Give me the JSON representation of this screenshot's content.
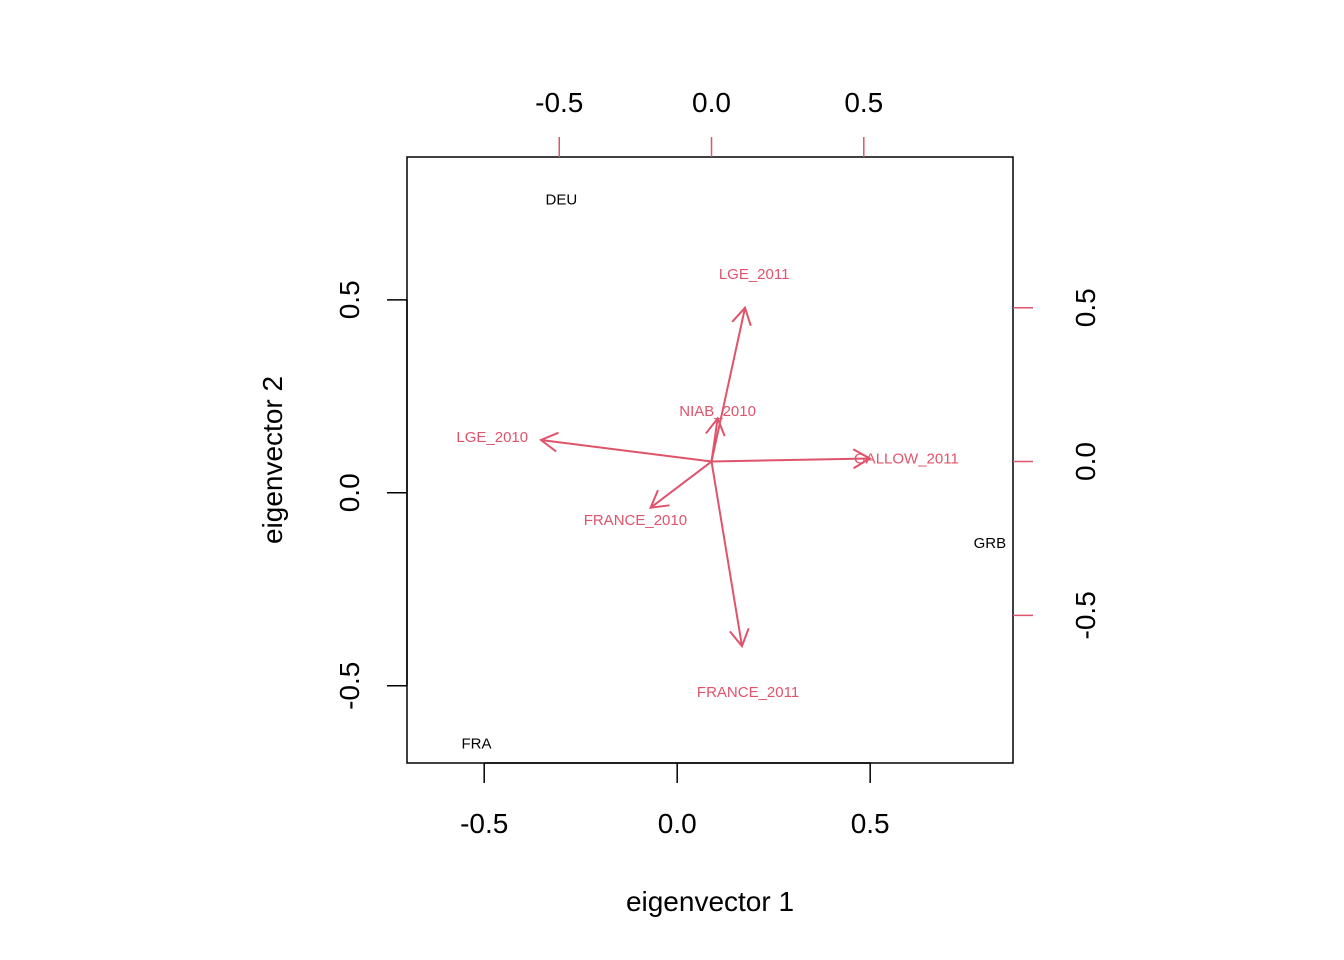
{
  "chart_data": {
    "type": "biplot",
    "xlabel": "eigenvector 1",
    "ylabel": "eigenvector 2",
    "colors": {
      "points": "#000000",
      "variables": "#DF536B"
    },
    "primary_axes": {
      "xlim": [
        -0.7,
        0.87
      ],
      "ylim": [
        -0.7,
        0.87
      ],
      "x_ticks": [
        -0.5,
        0.0,
        0.5
      ],
      "y_ticks": [
        -0.5,
        0.0,
        0.5
      ],
      "x_tick_labels": [
        "-0.5",
        "0.0",
        "0.5"
      ],
      "y_tick_labels": [
        "-0.5",
        "0.0",
        "0.5"
      ]
    },
    "secondary_axes": {
      "xlim": [
        -1.0,
        0.99
      ],
      "ylim": [
        -0.98,
        0.99
      ],
      "x_ticks": [
        -0.5,
        0.0,
        0.5
      ],
      "y_ticks": [
        -0.5,
        0.0,
        0.5
      ],
      "x_tick_labels": [
        "-0.5",
        "0.0",
        "0.5"
      ],
      "y_tick_labels": [
        "-0.5",
        "0.0",
        "0.5"
      ]
    },
    "points": [
      {
        "label": "DEU",
        "x": -0.3,
        "y": 0.76
      },
      {
        "label": "FRA",
        "x": -0.52,
        "y": -0.65
      },
      {
        "label": "GRB",
        "x": 0.81,
        "y": -0.13
      }
    ],
    "variables": [
      {
        "label": "LGE_2011",
        "x": 0.11,
        "y": 0.5,
        "label_x": 0.14,
        "label_y": 0.61
      },
      {
        "label": "NIAB_2010",
        "x": 0.02,
        "y": 0.14,
        "label_x": 0.02,
        "label_y": 0.165
      },
      {
        "label": "LGE_2010",
        "x": -0.56,
        "y": 0.07,
        "label_x": -0.72,
        "label_y": 0.08
      },
      {
        "label": "GALLOW_2011",
        "x": 0.52,
        "y": 0.01,
        "label_x": 0.64,
        "label_y": 0.01
      },
      {
        "label": "FRANCE_2010",
        "x": -0.2,
        "y": -0.15,
        "label_x": -0.25,
        "label_y": -0.19
      },
      {
        "label": "FRANCE_2011",
        "x": 0.1,
        "y": -0.6,
        "label_x": 0.12,
        "label_y": -0.75
      }
    ]
  }
}
